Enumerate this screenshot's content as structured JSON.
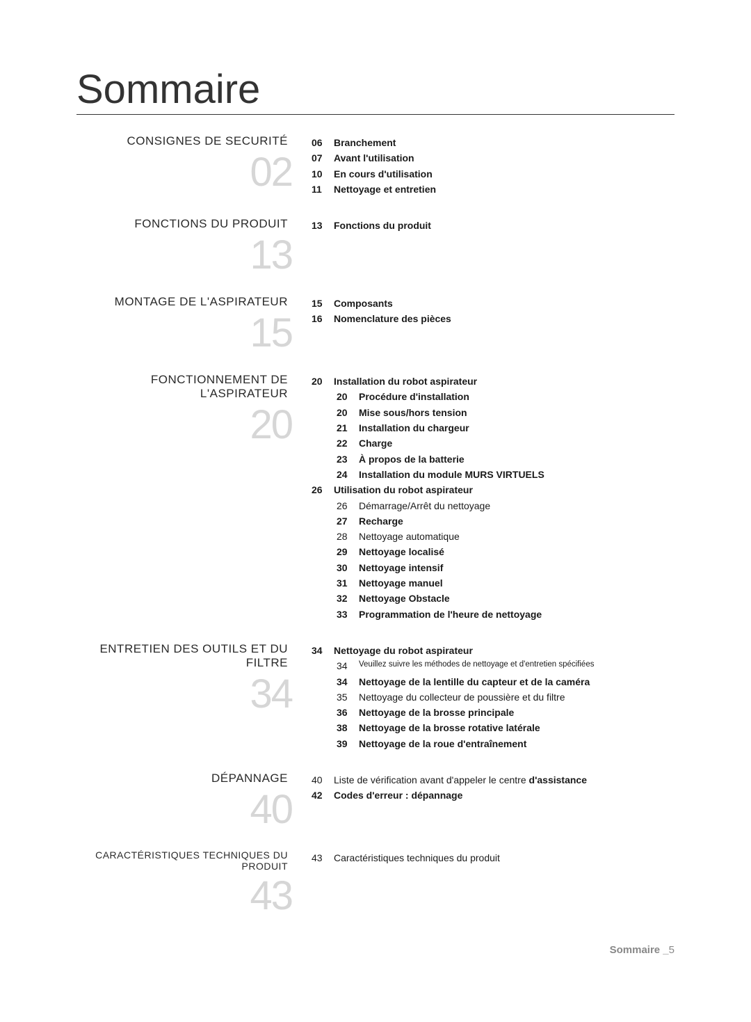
{
  "title": "Sommaire",
  "footer_label": "Sommaire _",
  "footer_page": "5",
  "colors": {
    "text": "#1a1a1a",
    "big_number": "#d6d6d6",
    "rule": "#333333",
    "footer": "#888888",
    "bg": "#ffffff"
  },
  "sections": [
    {
      "heading": "CONSIGNES DE SECURITÉ",
      "number": "02",
      "items": [
        {
          "page": "06",
          "label": "Branchement",
          "bold": true
        },
        {
          "page": "07",
          "label": "Avant l'utilisation",
          "bold": true
        },
        {
          "page": "10",
          "label": "En cours d'utilisation",
          "bold": true
        },
        {
          "page": "11",
          "label": "Nettoyage et entretien",
          "bold": true
        }
      ]
    },
    {
      "heading": "FONCTIONS DU PRODUIT",
      "number": "13",
      "items": [
        {
          "page": "13",
          "label": "Fonctions du produit",
          "bold": true
        }
      ]
    },
    {
      "heading": "MONTAGE DE L'ASPIRATEUR",
      "number": "15",
      "items": [
        {
          "page": "15",
          "label": "Composants",
          "bold": true
        },
        {
          "page": "16",
          "label": "Nomenclature des pièces",
          "bold": true
        }
      ]
    },
    {
      "heading": "FONCTIONNEMENT DE L'ASPIRATEUR",
      "number": "20",
      "items": [
        {
          "page": "20",
          "label": "Installation du robot aspirateur",
          "bold": true,
          "sub": [
            {
              "page": "20",
              "label": "Procédure d'installation",
              "bold": true
            },
            {
              "page": "20",
              "label": "Mise sous/hors tension",
              "bold": true
            },
            {
              "page": "21",
              "label": "Installation du chargeur",
              "bold": true
            },
            {
              "page": "22",
              "label": "Charge",
              "bold": true
            },
            {
              "page": "23",
              "label": "À propos de la batterie",
              "bold": true
            },
            {
              "page": "24",
              "label": "Installation du module MURS VIRTUELS",
              "bold": true
            }
          ]
        },
        {
          "page": "26",
          "label": "Utilisation du robot aspirateur",
          "bold": true,
          "sub": [
            {
              "page": "26",
              "label": "Démarrage/Arrêt du nettoyage",
              "bold": false
            },
            {
              "page": "27",
              "label": "Recharge",
              "bold": true
            },
            {
              "page": "28",
              "label": "Nettoyage automatique",
              "bold": false
            },
            {
              "page": "29",
              "label": "Nettoyage localisé",
              "bold": true
            },
            {
              "page": "30",
              "label": "Nettoyage intensif",
              "bold": true
            },
            {
              "page": "31",
              "label": "Nettoyage manuel",
              "bold": true
            },
            {
              "page": "32",
              "label": "Nettoyage Obstacle",
              "bold": true
            },
            {
              "page": "33",
              "label": "Programmation de l'heure de nettoyage",
              "bold": true
            }
          ]
        }
      ]
    },
    {
      "heading": "ENTRETIEN DES OUTILS ET DU FILTRE",
      "number": "34",
      "items": [
        {
          "page": "34",
          "label": "Nettoyage du robot aspirateur",
          "bold": true,
          "sub": [
            {
              "page": "34",
              "label": "Veuillez suivre les méthodes de nettoyage et d'entretien spécifiées",
              "bold": false,
              "small": true
            },
            {
              "page": "34",
              "label": "Nettoyage de la lentille du capteur et de la caméra",
              "bold": true
            },
            {
              "page": "35",
              "label": "Nettoyage du collecteur de poussière et du filtre",
              "bold": false
            },
            {
              "page": "36",
              "label": "Nettoyage de la brosse principale",
              "bold": true
            },
            {
              "page": "38",
              "label": "Nettoyage de la brosse rotative latérale",
              "bold": true
            },
            {
              "page": "39",
              "label": "Nettoyage de la roue d'entraînement",
              "bold": true
            }
          ]
        }
      ]
    },
    {
      "heading": "DÉPANNAGE",
      "number": "40",
      "items": [
        {
          "page": "40",
          "label_a": "Liste de vérification avant d'appeler le centre ",
          "label_b": "d'assistance",
          "bold_a": false,
          "bold_b": true
        },
        {
          "page": "42",
          "label": "Codes d'erreur : dépannage",
          "bold": true
        }
      ]
    },
    {
      "heading": "CARACTÉRISTIQUES TECHNIQUES DU PRODUIT",
      "number": "43",
      "heading_small": true,
      "items": [
        {
          "page": "43",
          "label": "Caractéristiques techniques du produit",
          "bold": false
        }
      ]
    }
  ]
}
